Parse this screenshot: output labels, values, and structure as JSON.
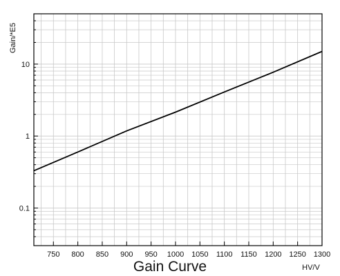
{
  "chart_data": {
    "type": "line",
    "title": "Gain Curve",
    "xlabel": "HV/V",
    "ylabel": "Gain/*E5",
    "x_scale": "linear",
    "y_scale": "log",
    "xlim": [
      710,
      1300
    ],
    "ylim": [
      0.03,
      50
    ],
    "x_ticks": [
      750,
      800,
      850,
      900,
      950,
      1000,
      1050,
      1100,
      1150,
      1200,
      1250,
      1300
    ],
    "y_tick_labels": [
      {
        "value": 0.1,
        "label": "0.1"
      },
      {
        "value": 1,
        "label": "1"
      },
      {
        "value": 10,
        "label": "10"
      }
    ],
    "grid": true,
    "series": [
      {
        "color": "#000000",
        "x": [
          710,
          800,
          900,
          1000,
          1100,
          1200,
          1300
        ],
        "y": [
          0.33,
          0.6,
          1.18,
          2.15,
          4.1,
          7.7,
          15
        ]
      }
    ]
  },
  "colors": {
    "line": "#000000",
    "grid": "#c8c8c8",
    "axis": "#000000"
  }
}
